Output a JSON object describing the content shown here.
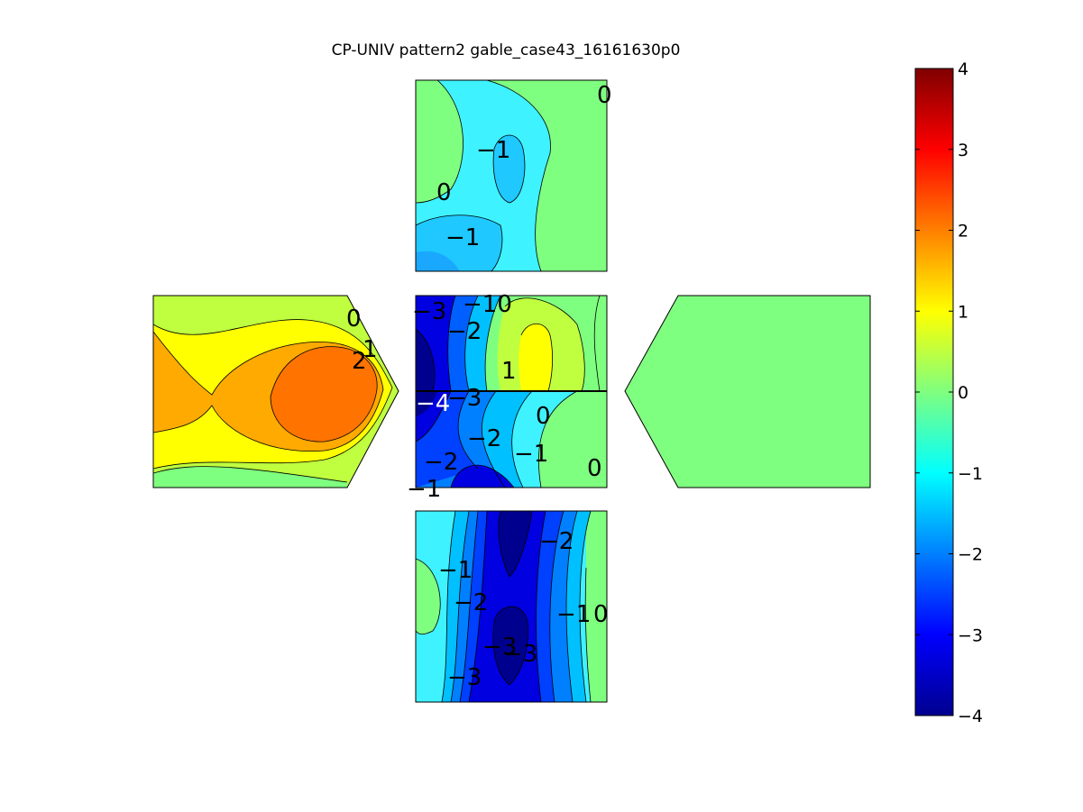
{
  "chart_data": {
    "type": "heatmap",
    "title": "CP-UNIV pattern2 gable_case43_16161630p0",
    "colorbar": {
      "min": -4,
      "max": 4,
      "ticks": [
        "4",
        "3",
        "2",
        "1",
        "0",
        "−1",
        "−2",
        "−3",
        "−4"
      ],
      "colormap": "jet"
    },
    "panels": [
      {
        "name": "top",
        "shape": "square",
        "contour_labels": [
          "0",
          "−1",
          "0",
          "−1"
        ]
      },
      {
        "name": "left",
        "shape": "pentagon",
        "contour_labels": [
          "0",
          "1",
          "2"
        ]
      },
      {
        "name": "center-upper",
        "shape": "square",
        "contour_labels": [
          "−3",
          "−10",
          "−2",
          "1",
          "−4",
          "−3"
        ]
      },
      {
        "name": "center-lower",
        "shape": "square",
        "contour_labels": [
          "0",
          "−2",
          "−1",
          "−2",
          "0",
          "−1"
        ]
      },
      {
        "name": "right",
        "shape": "pentagon",
        "uniform_value": 0,
        "contour_labels": []
      },
      {
        "name": "bottom",
        "shape": "square",
        "contour_labels": [
          "−2",
          "−1",
          "−2",
          "−1",
          "0",
          "−3",
          "−3",
          "−3"
        ]
      }
    ]
  }
}
